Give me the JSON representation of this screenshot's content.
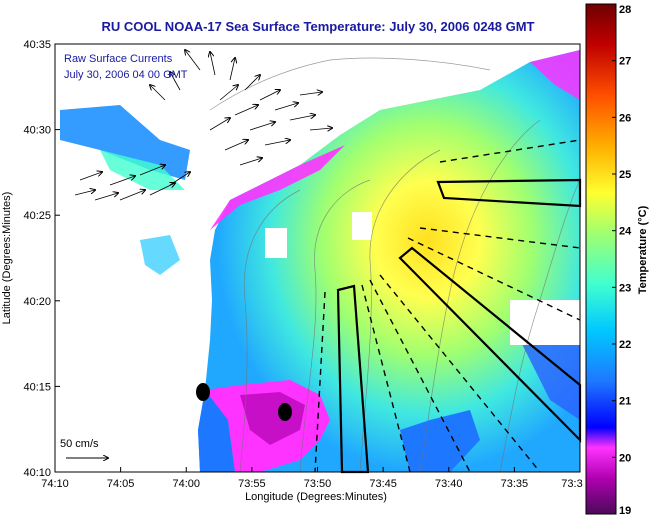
{
  "chart_data": {
    "type": "heatmap",
    "title": "RU COOL  NOAA-17  Sea Surface Temperature:  July 30, 2006 0248 GMT",
    "xlabel": "Longitude (Degrees:Minutes)",
    "ylabel": "Latitude (Degrees:Minutes)",
    "x_ticks": [
      "74:10",
      "74:05",
      "74:00",
      "73:55",
      "73:50",
      "73:45",
      "73:40",
      "73:35",
      "73:3"
    ],
    "y_ticks": [
      "40:35",
      "40:30",
      "40:25",
      "40:20",
      "40:15",
      "40:10"
    ],
    "colorbar": {
      "label": "Temperature (°C)",
      "ticks": [
        "28",
        "27",
        "26",
        "25",
        "24",
        "23",
        "22",
        "21",
        "20",
        "19"
      ],
      "range": [
        19,
        28
      ],
      "colormap": [
        "#4b0a5a",
        "#b000b0",
        "#ff33ff",
        "#0000ff",
        "#1e78ff",
        "#00c8ff",
        "#40ffd0",
        "#a0ff70",
        "#ffff30",
        "#ffb000",
        "#ff5000",
        "#c00000",
        "#700000"
      ]
    },
    "legend_entries": [
      "Raw Surface Currents",
      "July 30, 2006 04 00 GMT"
    ],
    "scale_arrow_label": "50 cm/s",
    "land_color": "#ffffff",
    "cloud_mask_color": "#ffffff",
    "markers": 2
  }
}
